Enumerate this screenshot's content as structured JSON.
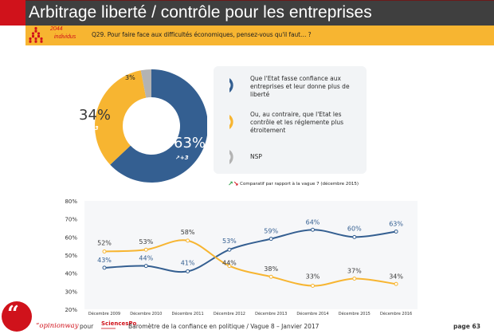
{
  "header": {
    "title": "Arbitrage liberté / contrôle pour les entreprises",
    "population_count": "2044",
    "population_label": "individus",
    "question": "Q29. Pour faire face aux difficultés économiques, pensez-vous qu'il faut… ?"
  },
  "colors": {
    "blue": "#345f91",
    "yellow": "#f7b531",
    "gray": "#b3b3b3",
    "red": "#d0121b",
    "green": "#2ea04a",
    "dark": "#3f3f3f"
  },
  "legend": {
    "items": [
      {
        "label": "Que l'Etat fasse confiance aux entreprises et leur donne plus de liberté",
        "color": "#345f91",
        "icon": "donut-segment-icon"
      },
      {
        "label": "Ou, au contraire, que l'Etat les contrôle et les réglemente plus étroitement",
        "color": "#f7b531",
        "icon": "donut-segment-icon"
      },
      {
        "label": "NSP",
        "color": "#b3b3b3",
        "icon": "donut-segment-icon"
      }
    ],
    "comparison_note": "Comparatif par rapport à la vague 7 (décembre 2015)",
    "up_arrow": "↗",
    "down_arrow": "↘"
  },
  "chart_data": [
    {
      "type": "pie",
      "variant": "donut",
      "slices": [
        {
          "name": "Que l'Etat fasse confiance aux entreprises et leur donne plus de liberté",
          "value": 63,
          "label": "63%",
          "change": "+3",
          "change_dir": "up",
          "color": "#345f91"
        },
        {
          "name": "Ou, au contraire, que l'Etat les contrôle et les réglemente plus étroitement",
          "value": 34,
          "label": "34%",
          "change": "-3",
          "change_dir": "down",
          "color": "#f7b531"
        },
        {
          "name": "NSP",
          "value": 3,
          "label": "3%",
          "change": "",
          "change_dir": "",
          "color": "#b3b3b3"
        }
      ]
    },
    {
      "type": "line",
      "categories": [
        "Décembre 2009",
        "Décembre 2010",
        "Décembre 2011",
        "Décembre 2012",
        "Décembre 2013",
        "Décembre 2014",
        "Décembre 2015",
        "Décembre 2016"
      ],
      "series": [
        {
          "name": "Que l'Etat fasse confiance aux entreprises et leur donne plus de liberté",
          "color": "#345f91",
          "values": [
            43,
            44,
            41,
            53,
            59,
            64,
            60,
            63
          ]
        },
        {
          "name": "Ou, au contraire, que l'Etat les contrôle et les réglemente plus étroitement",
          "color": "#f7b531",
          "values": [
            52,
            53,
            58,
            44,
            38,
            33,
            37,
            34
          ]
        }
      ],
      "ylim": [
        20,
        80
      ],
      "yticks": [
        "20%",
        "30%",
        "40%",
        "50%",
        "60%",
        "70%",
        "80%"
      ],
      "ytick_values": [
        20,
        30,
        40,
        50,
        60,
        70,
        80
      ],
      "grid": false,
      "title": "",
      "xlabel": "",
      "ylabel": ""
    }
  ],
  "footer": {
    "brand": "“opinionway",
    "pour": "pour",
    "partner": "SciencesPo",
    "text": "Baromètre de la confiance en politique / Vague 8 – Janvier 2017",
    "page": "page 63"
  }
}
